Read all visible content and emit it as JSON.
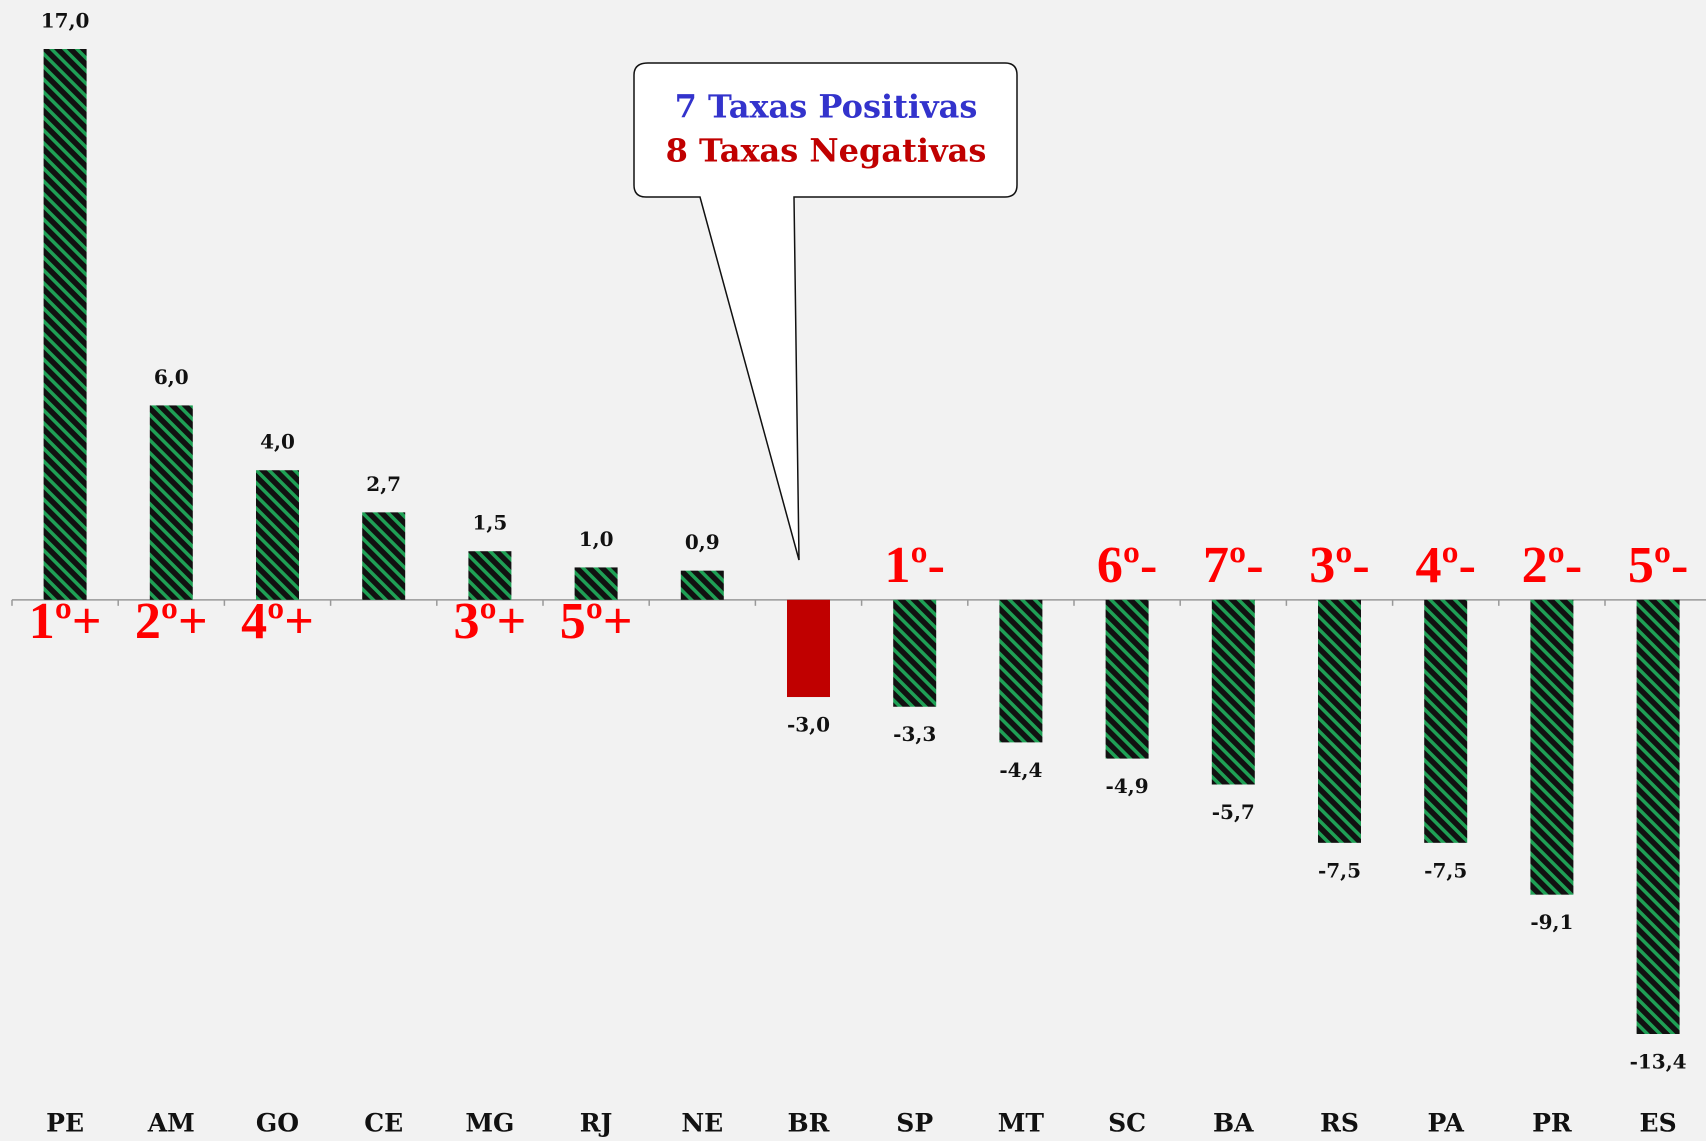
{
  "chart_data": {
    "type": "bar",
    "categories": [
      "PE",
      "AM",
      "GO",
      "CE",
      "MG",
      "RJ",
      "NE",
      "BR",
      "SP",
      "MT",
      "SC",
      "BA",
      "RS",
      "PA",
      "PR",
      "ES"
    ],
    "values": [
      17.0,
      6.0,
      4.0,
      2.7,
      1.5,
      1.0,
      0.9,
      -3.0,
      -3.3,
      -4.4,
      -4.9,
      -5.7,
      -7.5,
      -7.5,
      -9.1,
      -13.4
    ],
    "value_labels": [
      "17,0",
      "6,0",
      "4,0",
      "2,7",
      "1,5",
      "1,0",
      "0,9",
      "-3,0",
      "-3,3",
      "-4,4",
      "-4,9",
      "-5,7",
      "-7,5",
      "-7,5",
      "-9,1",
      "-13,4"
    ],
    "color": "#1fa055",
    "hatch": true,
    "bar_colors": [
      "#1fa055",
      "#1fa055",
      "#1fa055",
      "#1fa055",
      "#1fa055",
      "#1fa055",
      "#1fa055",
      "#c00000",
      "#1fa055",
      "#1fa055",
      "#1fa055",
      "#1fa055",
      "#1fa055",
      "#1fa055",
      "#1fa055",
      "#1fa055"
    ],
    "rank_labels": [
      "1º+",
      "2º+",
      "4º+",
      null,
      "3º+",
      "5º+",
      null,
      null,
      "1º-",
      null,
      "6º-",
      "7º-",
      "3º-",
      "4º-",
      "2º-",
      "5º-"
    ],
    "callout": {
      "lines": [
        {
          "text": "7 Taxas Positivas",
          "color": "#3333cc"
        },
        {
          "text": "8 Taxas Negativas",
          "color": "#c00000"
        }
      ]
    }
  }
}
